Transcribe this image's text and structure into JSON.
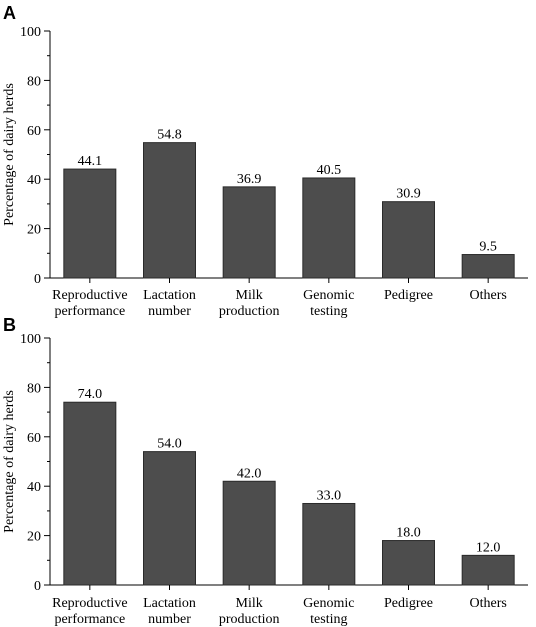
{
  "chart_data": [
    {
      "panel": "A",
      "type": "bar",
      "ylabel": "Percentage of dairy herds",
      "ylim": [
        0,
        100
      ],
      "yticks": [
        "0",
        "20",
        "40",
        "60",
        "80",
        "100"
      ],
      "categories": [
        [
          "Reproductive",
          "performance"
        ],
        [
          "Lactation",
          "number"
        ],
        [
          "Milk",
          "production"
        ],
        [
          "Genomic",
          "testing"
        ],
        [
          "Pedigree"
        ],
        [
          "Others"
        ]
      ],
      "values": [
        44.1,
        54.8,
        36.9,
        40.5,
        30.9,
        9.5
      ],
      "value_labels": [
        "44.1",
        "54.8",
        "36.9",
        "40.5",
        "30.9",
        "9.5"
      ],
      "bar_color": "#4d4d4d"
    },
    {
      "panel": "B",
      "type": "bar",
      "ylabel": "Percentage of dairy herds",
      "ylim": [
        0,
        100
      ],
      "yticks": [
        "0",
        "20",
        "40",
        "60",
        "80",
        "100"
      ],
      "categories": [
        [
          "Reproductive",
          "performance"
        ],
        [
          "Lactation",
          "number"
        ],
        [
          "Milk",
          "production"
        ],
        [
          "Genomic",
          "testing"
        ],
        [
          "Pedigree"
        ],
        [
          "Others"
        ]
      ],
      "values": [
        74.0,
        54.0,
        42.0,
        33.0,
        18.0,
        12.0
      ],
      "value_labels": [
        "74.0",
        "54.0",
        "42.0",
        "33.0",
        "18.0",
        "12.0"
      ],
      "bar_color": "#4d4d4d"
    }
  ]
}
